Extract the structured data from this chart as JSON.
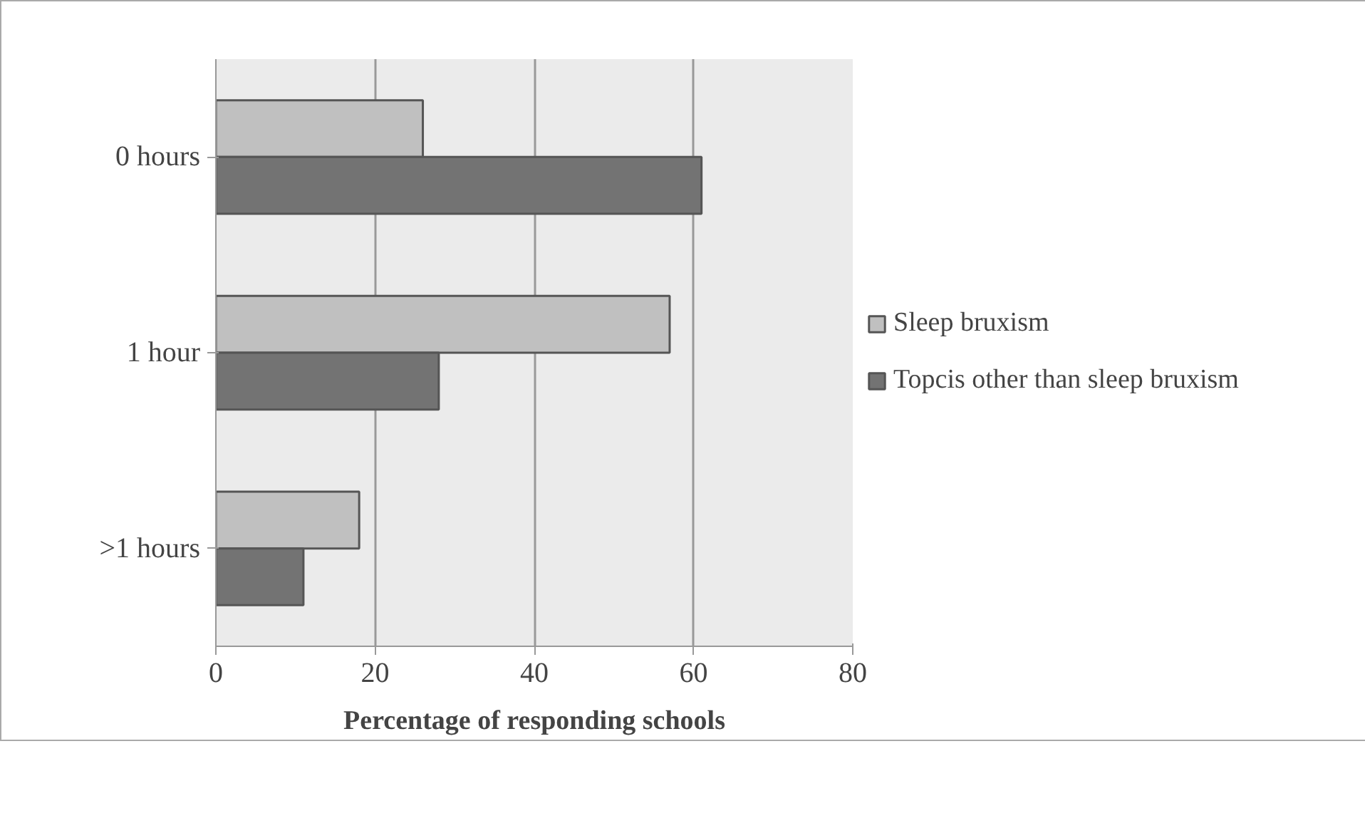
{
  "chart_data": {
    "type": "bar",
    "orientation": "horizontal",
    "xlabel": "Percentage of responding schools",
    "categories": [
      "0 hours",
      "1 hour",
      ">1 hours"
    ],
    "series": [
      {
        "name": "Sleep bruxism",
        "color": "#c0c0c0",
        "values": [
          26,
          57,
          18
        ]
      },
      {
        "name": "Topcis other than sleep bruxism",
        "color": "#737373",
        "values": [
          61,
          28,
          11
        ]
      }
    ],
    "xlim": [
      0,
      80
    ],
    "xticks": [
      0,
      20,
      40,
      60,
      80
    ],
    "grid": "x",
    "legend": "right"
  }
}
